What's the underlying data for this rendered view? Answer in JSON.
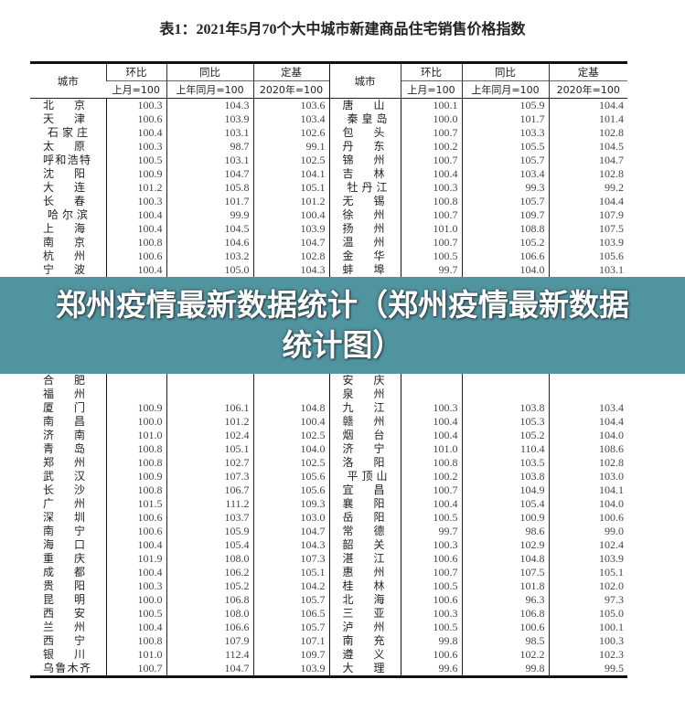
{
  "title": "表1：2021年5月70个大中城市新建商品住宅销售价格指数",
  "headers": {
    "city": "城市",
    "hb": "环比",
    "hb_base": "上月=100",
    "tb": "同比",
    "tb_base": "上年同月=100",
    "dj": "定基",
    "dj_base": "2020年=100"
  },
  "left_rows": [
    [
      "北京",
      "100.3",
      "104.3",
      "103.6"
    ],
    [
      "天津",
      "100.6",
      "103.9",
      "103.4"
    ],
    [
      "石家庄",
      "100.4",
      "103.1",
      "102.6"
    ],
    [
      "太原",
      "100.3",
      "98.7",
      "99.1"
    ],
    [
      "呼和浩特",
      "100.5",
      "103.1",
      "102.5"
    ],
    [
      "沈阳",
      "100.9",
      "104.7",
      "104.1"
    ],
    [
      "大连",
      "101.2",
      "105.8",
      "105.1"
    ],
    [
      "长春",
      "100.3",
      "101.7",
      "101.2"
    ],
    [
      "哈尔滨",
      "100.4",
      "99.9",
      "100.4"
    ],
    [
      "上海",
      "100.4",
      "104.5",
      "103.9"
    ],
    [
      "南京",
      "100.8",
      "104.6",
      "104.7"
    ],
    [
      "杭州",
      "100.6",
      "103.2",
      "102.8"
    ],
    [
      "宁波",
      "100.4",
      "105.0",
      "104.3"
    ],
    [
      "合肥",
      "",
      "",
      ""
    ],
    [
      "福州",
      "",
      "",
      ""
    ],
    [
      "厦门",
      "100.9",
      "106.1",
      "104.8"
    ],
    [
      "南昌",
      "100.0",
      "101.2",
      "100.4"
    ],
    [
      "济南",
      "101.0",
      "102.4",
      "102.5"
    ],
    [
      "青岛",
      "100.8",
      "105.1",
      "104.0"
    ],
    [
      "郑州",
      "100.8",
      "102.7",
      "102.5"
    ],
    [
      "武汉",
      "100.9",
      "107.3",
      "105.6"
    ],
    [
      "长沙",
      "100.8",
      "106.7",
      "105.6"
    ],
    [
      "广州",
      "101.5",
      "111.2",
      "109.3"
    ],
    [
      "深圳",
      "100.6",
      "103.7",
      "103.0"
    ],
    [
      "南宁",
      "100.6",
      "105.9",
      "104.7"
    ],
    [
      "海口",
      "100.4",
      "105.4",
      "104.3"
    ],
    [
      "重庆",
      "101.9",
      "108.0",
      "107.3"
    ],
    [
      "成都",
      "100.4",
      "106.2",
      "105.1"
    ],
    [
      "贵阳",
      "100.3",
      "105.2",
      "104.2"
    ],
    [
      "昆明",
      "100.0",
      "106.8",
      "105.7"
    ],
    [
      "西安",
      "100.5",
      "108.0",
      "106.5"
    ],
    [
      "兰州",
      "100.4",
      "106.6",
      "105.7"
    ],
    [
      "西宁",
      "100.8",
      "107.9",
      "107.1"
    ],
    [
      "银川",
      "101.0",
      "112.4",
      "109.7"
    ],
    [
      "乌鲁木齐",
      "100.7",
      "104.7",
      "103.9"
    ]
  ],
  "right_rows": [
    [
      "唐山",
      "100.1",
      "105.9",
      "104.4"
    ],
    [
      "秦皇岛",
      "100.0",
      "101.7",
      "101.4"
    ],
    [
      "包头",
      "100.7",
      "103.3",
      "102.8"
    ],
    [
      "丹东",
      "100.2",
      "105.5",
      "104.5"
    ],
    [
      "锦州",
      "100.7",
      "105.7",
      "104.7"
    ],
    [
      "吉林",
      "100.4",
      "103.4",
      "102.8"
    ],
    [
      "牡丹江",
      "100.3",
      "99.3",
      "99.2"
    ],
    [
      "无锡",
      "100.8",
      "105.7",
      "104.4"
    ],
    [
      "徐州",
      "100.7",
      "109.7",
      "107.9"
    ],
    [
      "扬州",
      "101.0",
      "108.8",
      "107.5"
    ],
    [
      "温州",
      "100.7",
      "105.2",
      "103.9"
    ],
    [
      "金华",
      "100.5",
      "106.6",
      "105.6"
    ],
    [
      "蚌埠",
      "99.7",
      "104.0",
      "103.1"
    ],
    [
      "安庆",
      "",
      "",
      ""
    ],
    [
      "泉州",
      "",
      "",
      ""
    ],
    [
      "九江",
      "100.3",
      "103.8",
      "103.4"
    ],
    [
      "赣州",
      "100.4",
      "105.3",
      "104.4"
    ],
    [
      "烟台",
      "100.4",
      "105.2",
      "104.0"
    ],
    [
      "济宁",
      "101.0",
      "110.4",
      "108.6"
    ],
    [
      "洛阳",
      "100.8",
      "103.5",
      "102.8"
    ],
    [
      "平顶山",
      "100.2",
      "103.8",
      "103.0"
    ],
    [
      "宜昌",
      "100.7",
      "104.9",
      "104.1"
    ],
    [
      "襄阳",
      "100.4",
      "105.4",
      "104.0"
    ],
    [
      "岳阳",
      "100.5",
      "100.9",
      "100.6"
    ],
    [
      "常德",
      "99.7",
      "98.6",
      "99.0"
    ],
    [
      "韶关",
      "100.3",
      "102.9",
      "102.4"
    ],
    [
      "湛江",
      "100.6",
      "104.8",
      "103.9"
    ],
    [
      "惠州",
      "100.7",
      "107.5",
      "105.1"
    ],
    [
      "桂林",
      "100.5",
      "101.8",
      "102.0"
    ],
    [
      "北海",
      "100.6",
      "96.3",
      "97.3"
    ],
    [
      "三亚",
      "100.3",
      "106.8",
      "105.0"
    ],
    [
      "泸州",
      "100.5",
      "100.6",
      "100.1"
    ],
    [
      "南充",
      "99.8",
      "98.5",
      "100.3"
    ],
    [
      "遵义",
      "100.6",
      "102.2",
      "102.3"
    ],
    [
      "大理",
      "99.6",
      "99.8",
      "99.5"
    ]
  ],
  "banner": {
    "line1": "郑州疫情最新数据统计（郑州疫情最新数据",
    "line2": "统计图）",
    "background": "#5094a0"
  }
}
